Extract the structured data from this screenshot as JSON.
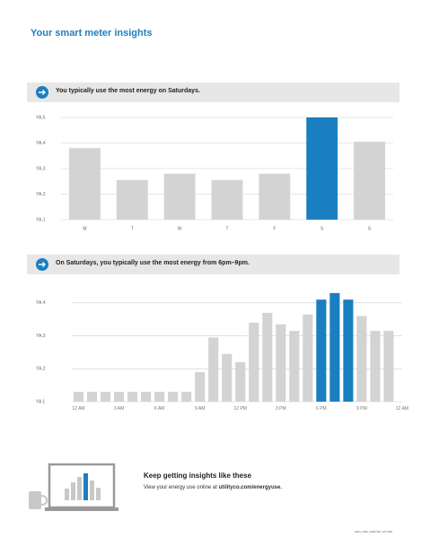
{
  "header": {
    "title": "Your smart meter insights"
  },
  "chart_data": [
    {
      "type": "bar",
      "title": "You typically use the most energy on Saturdays.",
      "categories": [
        "M",
        "T",
        "W",
        "T",
        "F",
        "S",
        "S"
      ],
      "values": [
        3.8,
        2.55,
        2.8,
        2.55,
        2.8,
        5.0,
        4.05
      ],
      "colors": [
        "#d3d3d3",
        "#d3d3d3",
        "#d3d3d3",
        "#d3d3d3",
        "#d3d3d3",
        "#1a7fc1",
        "#d3d3d3"
      ],
      "ylim": [
        1,
        5
      ],
      "yticks": [
        {
          "value": 5,
          "label": "YA,5"
        },
        {
          "value": 4,
          "label": "YA,4"
        },
        {
          "value": 3,
          "label": "YA,3"
        },
        {
          "value": 2,
          "label": "YA,2"
        },
        {
          "value": 1,
          "label": "YA,1"
        }
      ],
      "grid": true
    },
    {
      "type": "bar",
      "title": "On Saturdays, you typically use the most energy from 6pm–9pm.",
      "x": [
        0,
        1,
        2,
        3,
        4,
        5,
        6,
        7,
        8,
        9,
        10,
        11,
        12,
        13,
        14,
        15,
        16,
        17,
        18,
        19,
        20,
        21,
        22,
        23
      ],
      "values": [
        1.3,
        1.3,
        1.3,
        1.3,
        1.3,
        1.3,
        1.3,
        1.3,
        1.3,
        1.9,
        2.95,
        2.45,
        2.2,
        3.4,
        3.7,
        3.35,
        3.15,
        3.65,
        4.1,
        4.3,
        4.1,
        3.6,
        3.15,
        3.15
      ],
      "colors": [
        "#d3d3d3",
        "#d3d3d3",
        "#d3d3d3",
        "#d3d3d3",
        "#d3d3d3",
        "#d3d3d3",
        "#d3d3d3",
        "#d3d3d3",
        "#d3d3d3",
        "#d3d3d3",
        "#d3d3d3",
        "#d3d3d3",
        "#d3d3d3",
        "#d3d3d3",
        "#d3d3d3",
        "#d3d3d3",
        "#d3d3d3",
        "#d3d3d3",
        "#1a7fc1",
        "#1a7fc1",
        "#1a7fc1",
        "#d3d3d3",
        "#d3d3d3",
        "#d3d3d3"
      ],
      "xlim": [
        -0.5,
        24
      ],
      "xticks": [
        {
          "value": 0,
          "label": "12 AM"
        },
        {
          "value": 3,
          "label": "3 AM"
        },
        {
          "value": 6,
          "label": "6 AM"
        },
        {
          "value": 9,
          "label": "9 AM"
        },
        {
          "value": 12,
          "label": "12 PM"
        },
        {
          "value": 15,
          "label": "3 PM"
        },
        {
          "value": 18,
          "label": "6 PM"
        },
        {
          "value": 21,
          "label": "9 PM"
        },
        {
          "value": 24,
          "label": "12 AM"
        }
      ],
      "ylim": [
        1,
        4.5
      ],
      "yticks": [
        {
          "value": 4,
          "label": "YA,4"
        },
        {
          "value": 3,
          "label": "YA,3"
        },
        {
          "value": 2,
          "label": "YA,2"
        },
        {
          "value": 1,
          "label": "YA 1"
        }
      ],
      "grid": true
    }
  ],
  "footer": {
    "heading": "Keep getting insights like these",
    "text": "View your energy use online at",
    "link": "utilityco.com/energyuse.",
    "code": "GEN_2000_SMETER_LETTER"
  }
}
